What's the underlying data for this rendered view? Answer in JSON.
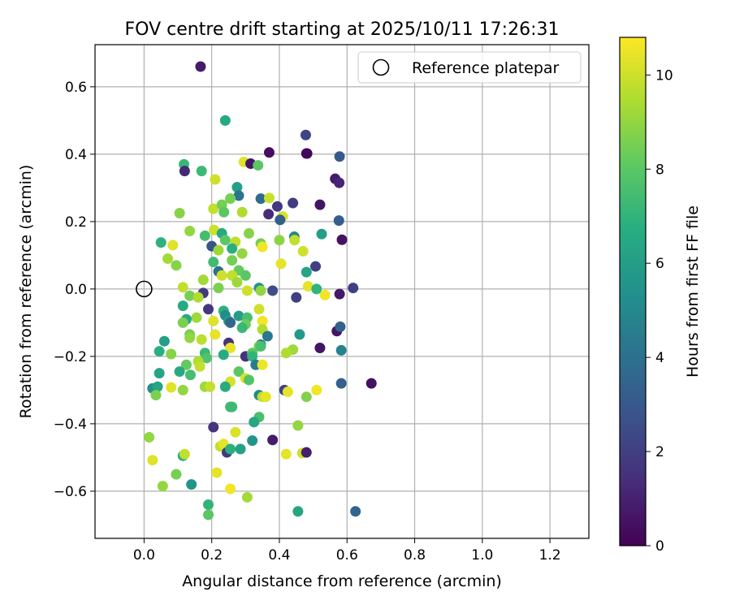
{
  "chart_data": {
    "type": "scatter",
    "title": "FOV centre drift starting at 2025/10/11 17:26:31",
    "xlabel": "Angular distance from reference (arcmin)",
    "ylabel": "Rotation from reference (arcmin)",
    "xlim": [
      -0.145,
      1.315
    ],
    "ylim": [
      -0.74,
      0.725
    ],
    "xticks": [
      0.0,
      0.2,
      0.4,
      0.6,
      0.8,
      1.0,
      1.2
    ],
    "xtick_labels": [
      "0.0",
      "0.2",
      "0.4",
      "0.6",
      "0.8",
      "1.0",
      "1.2"
    ],
    "yticks": [
      -0.6,
      -0.4,
      -0.2,
      0.0,
      0.2,
      0.4,
      0.6
    ],
    "ytick_labels": [
      "−0.6",
      "−0.4",
      "−0.2",
      "0.0",
      "0.2",
      "0.4",
      "0.6"
    ],
    "grid": true,
    "legend": {
      "position": "top-right",
      "label": "Reference platepar"
    },
    "reference_point": {
      "x": 0.0,
      "y": 0.0
    },
    "colorbar": {
      "label": "Hours from first FF file",
      "colormap": "viridis",
      "range": [
        0,
        10.8
      ],
      "ticks": [
        0,
        2,
        4,
        6,
        8,
        10
      ],
      "tick_labels": [
        "0",
        "2",
        "4",
        "6",
        "8",
        "10"
      ]
    },
    "points": [
      {
        "x": 0.167,
        "y": 0.66,
        "c": 0.8
      },
      {
        "x": 0.24,
        "y": 0.5,
        "c": 6.5
      },
      {
        "x": 0.37,
        "y": 0.405,
        "c": 0.4
      },
      {
        "x": 0.478,
        "y": 0.457,
        "c": 2.2
      },
      {
        "x": 0.48,
        "y": 0.402,
        "c": 0.2
      },
      {
        "x": 0.482,
        "y": 0.402,
        "c": 0.2
      },
      {
        "x": 0.578,
        "y": 0.393,
        "c": 3.0
      },
      {
        "x": 0.295,
        "y": 0.377,
        "c": 10.3
      },
      {
        "x": 0.315,
        "y": 0.372,
        "c": 0.6
      },
      {
        "x": 0.337,
        "y": 0.367,
        "c": 8.0
      },
      {
        "x": 0.118,
        "y": 0.37,
        "c": 7.2
      },
      {
        "x": 0.12,
        "y": 0.35,
        "c": 1.2
      },
      {
        "x": 0.17,
        "y": 0.35,
        "c": 7.3
      },
      {
        "x": 0.565,
        "y": 0.327,
        "c": 0.8
      },
      {
        "x": 0.577,
        "y": 0.315,
        "c": 1.1
      },
      {
        "x": 0.21,
        "y": 0.325,
        "c": 10.0
      },
      {
        "x": 0.275,
        "y": 0.302,
        "c": 6.1
      },
      {
        "x": 0.28,
        "y": 0.277,
        "c": 4.2
      },
      {
        "x": 0.255,
        "y": 0.268,
        "c": 8.5
      },
      {
        "x": 0.345,
        "y": 0.268,
        "c": 3.8
      },
      {
        "x": 0.37,
        "y": 0.27,
        "c": 9.9
      },
      {
        "x": 0.394,
        "y": 0.245,
        "c": 1.8
      },
      {
        "x": 0.44,
        "y": 0.255,
        "c": 1.9
      },
      {
        "x": 0.52,
        "y": 0.25,
        "c": 0.6
      },
      {
        "x": 0.205,
        "y": 0.238,
        "c": 9.8
      },
      {
        "x": 0.23,
        "y": 0.25,
        "c": 8.5
      },
      {
        "x": 0.105,
        "y": 0.225,
        "c": 8.8
      },
      {
        "x": 0.236,
        "y": 0.228,
        "c": 8.0
      },
      {
        "x": 0.29,
        "y": 0.228,
        "c": 9.5
      },
      {
        "x": 0.368,
        "y": 0.222,
        "c": 1.4
      },
      {
        "x": 0.41,
        "y": 0.215,
        "c": 10.2
      },
      {
        "x": 0.402,
        "y": 0.205,
        "c": 3.2
      },
      {
        "x": 0.576,
        "y": 0.203,
        "c": 3.2
      },
      {
        "x": 0.135,
        "y": 0.172,
        "c": 9.0
      },
      {
        "x": 0.207,
        "y": 0.175,
        "c": 10.0
      },
      {
        "x": 0.23,
        "y": 0.165,
        "c": 6.5
      },
      {
        "x": 0.18,
        "y": 0.158,
        "c": 7.5
      },
      {
        "x": 0.31,
        "y": 0.165,
        "c": 8.8
      },
      {
        "x": 0.444,
        "y": 0.155,
        "c": 5.0
      },
      {
        "x": 0.525,
        "y": 0.163,
        "c": 6.1
      },
      {
        "x": 0.585,
        "y": 0.146,
        "c": 0.5
      },
      {
        "x": 0.24,
        "y": 0.145,
        "c": 8.0
      },
      {
        "x": 0.27,
        "y": 0.14,
        "c": 9.8
      },
      {
        "x": 0.4,
        "y": 0.145,
        "c": 8.9
      },
      {
        "x": 0.445,
        "y": 0.145,
        "c": 9.8
      },
      {
        "x": 0.05,
        "y": 0.138,
        "c": 6.9
      },
      {
        "x": 0.085,
        "y": 0.13,
        "c": 10.3
      },
      {
        "x": 0.2,
        "y": 0.127,
        "c": 2.8
      },
      {
        "x": 0.345,
        "y": 0.135,
        "c": 8.5
      },
      {
        "x": 0.35,
        "y": 0.125,
        "c": 10.6
      },
      {
        "x": 0.26,
        "y": 0.12,
        "c": 6.8
      },
      {
        "x": 0.22,
        "y": 0.115,
        "c": 9.2
      },
      {
        "x": 0.29,
        "y": 0.105,
        "c": 9.0
      },
      {
        "x": 0.47,
        "y": 0.112,
        "c": 10.0
      },
      {
        "x": 0.07,
        "y": 0.09,
        "c": 9.3
      },
      {
        "x": 0.26,
        "y": 0.085,
        "c": 8.5
      },
      {
        "x": 0.205,
        "y": 0.08,
        "c": 7.4
      },
      {
        "x": 0.095,
        "y": 0.07,
        "c": 8.8
      },
      {
        "x": 0.22,
        "y": 0.052,
        "c": 4.0
      },
      {
        "x": 0.28,
        "y": 0.055,
        "c": 8.2
      },
      {
        "x": 0.48,
        "y": 0.05,
        "c": 6.3
      },
      {
        "x": 0.23,
        "y": 0.04,
        "c": 10.0
      },
      {
        "x": 0.26,
        "y": 0.04,
        "c": 9.8
      },
      {
        "x": 0.3,
        "y": 0.04,
        "c": 8.0
      },
      {
        "x": 0.175,
        "y": 0.027,
        "c": 9.3
      },
      {
        "x": 0.275,
        "y": 0.02,
        "c": 9.2
      },
      {
        "x": 0.405,
        "y": 0.075,
        "c": 10.4
      },
      {
        "x": 0.507,
        "y": 0.067,
        "c": 2.0
      },
      {
        "x": 0.115,
        "y": 0.005,
        "c": 9.8
      },
      {
        "x": 0.22,
        "y": 0.003,
        "c": 8.6
      },
      {
        "x": 0.305,
        "y": -0.005,
        "c": 10.0
      },
      {
        "x": 0.34,
        "y": 0.003,
        "c": 5.6
      },
      {
        "x": 0.345,
        "y": -0.005,
        "c": 9.0
      },
      {
        "x": 0.38,
        "y": -0.005,
        "c": 2.5
      },
      {
        "x": 0.485,
        "y": 0.008,
        "c": 10.4
      },
      {
        "x": 0.51,
        "y": 0.0,
        "c": 7.0
      },
      {
        "x": 0.535,
        "y": -0.018,
        "c": 10.6
      },
      {
        "x": 0.578,
        "y": -0.015,
        "c": 0.7
      },
      {
        "x": 0.618,
        "y": 0.003,
        "c": 2.0
      },
      {
        "x": 0.175,
        "y": -0.012,
        "c": 1.8
      },
      {
        "x": 0.135,
        "y": -0.02,
        "c": 8.5
      },
      {
        "x": 0.16,
        "y": -0.025,
        "c": 9.5
      },
      {
        "x": 0.45,
        "y": -0.025,
        "c": 2.0
      },
      {
        "x": 0.115,
        "y": -0.05,
        "c": 6.5
      },
      {
        "x": 0.19,
        "y": -0.06,
        "c": 1.7
      },
      {
        "x": 0.235,
        "y": -0.065,
        "c": 6.9
      },
      {
        "x": 0.24,
        "y": -0.078,
        "c": 5.2
      },
      {
        "x": 0.28,
        "y": -0.08,
        "c": 6.0
      },
      {
        "x": 0.305,
        "y": -0.085,
        "c": 7.6
      },
      {
        "x": 0.34,
        "y": -0.06,
        "c": 10.0
      },
      {
        "x": 0.155,
        "y": -0.085,
        "c": 9.2
      },
      {
        "x": 0.125,
        "y": -0.09,
        "c": 6.5
      },
      {
        "x": 0.115,
        "y": -0.1,
        "c": 8.6
      },
      {
        "x": 0.205,
        "y": -0.095,
        "c": 10.3
      },
      {
        "x": 0.25,
        "y": -0.095,
        "c": 6.0
      },
      {
        "x": 0.255,
        "y": -0.1,
        "c": 3.6
      },
      {
        "x": 0.35,
        "y": -0.095,
        "c": 10.6
      },
      {
        "x": 0.3,
        "y": -0.105,
        "c": 8.3
      },
      {
        "x": 0.29,
        "y": -0.115,
        "c": 7.2
      },
      {
        "x": 0.35,
        "y": -0.12,
        "c": 9.5
      },
      {
        "x": 0.57,
        "y": -0.125,
        "c": 0.6
      },
      {
        "x": 0.58,
        "y": -0.112,
        "c": 3.3
      },
      {
        "x": 0.135,
        "y": -0.135,
        "c": 8.5
      },
      {
        "x": 0.21,
        "y": -0.135,
        "c": 10.4
      },
      {
        "x": 0.365,
        "y": -0.14,
        "c": 4.3
      },
      {
        "x": 0.46,
        "y": -0.135,
        "c": 5.8
      },
      {
        "x": 0.06,
        "y": -0.155,
        "c": 6.0
      },
      {
        "x": 0.25,
        "y": -0.16,
        "c": 1.5
      },
      {
        "x": 0.135,
        "y": -0.145,
        "c": 9.0
      },
      {
        "x": 0.17,
        "y": -0.15,
        "c": 9.7
      },
      {
        "x": 0.345,
        "y": -0.165,
        "c": 4.8
      },
      {
        "x": 0.34,
        "y": -0.17,
        "c": 8.5
      },
      {
        "x": 0.345,
        "y": -0.17,
        "c": 7.6
      },
      {
        "x": 0.255,
        "y": -0.175,
        "c": 10.4
      },
      {
        "x": 0.44,
        "y": -0.18,
        "c": 9.2
      },
      {
        "x": 0.52,
        "y": -0.175,
        "c": 0.6
      },
      {
        "x": 0.583,
        "y": -0.182,
        "c": 4.8
      },
      {
        "x": 0.045,
        "y": -0.185,
        "c": 6.8
      },
      {
        "x": 0.08,
        "y": -0.193,
        "c": 8.8
      },
      {
        "x": 0.18,
        "y": -0.19,
        "c": 7.2
      },
      {
        "x": 0.235,
        "y": -0.195,
        "c": 6.6
      },
      {
        "x": 0.3,
        "y": -0.2,
        "c": 1.5
      },
      {
        "x": 0.32,
        "y": -0.19,
        "c": 8.0
      },
      {
        "x": 0.42,
        "y": -0.19,
        "c": 9.5
      },
      {
        "x": 0.185,
        "y": -0.205,
        "c": 7.8
      },
      {
        "x": 0.32,
        "y": -0.2,
        "c": 7.0
      },
      {
        "x": 0.16,
        "y": -0.215,
        "c": 9.5
      },
      {
        "x": 0.125,
        "y": -0.225,
        "c": 8.2
      },
      {
        "x": 0.165,
        "y": -0.23,
        "c": 9.8
      },
      {
        "x": 0.33,
        "y": -0.225,
        "c": 4.5
      },
      {
        "x": 0.35,
        "y": -0.225,
        "c": 10.5
      },
      {
        "x": 0.105,
        "y": -0.245,
        "c": 6.5
      },
      {
        "x": 0.045,
        "y": -0.25,
        "c": 6.3
      },
      {
        "x": 0.137,
        "y": -0.255,
        "c": 7.5
      },
      {
        "x": 0.28,
        "y": -0.245,
        "c": 8.0
      },
      {
        "x": 0.3,
        "y": -0.265,
        "c": 10.2
      },
      {
        "x": 0.31,
        "y": -0.27,
        "c": 7.8
      },
      {
        "x": 0.255,
        "y": -0.275,
        "c": 10.2
      },
      {
        "x": 0.583,
        "y": -0.28,
        "c": 3.3
      },
      {
        "x": 0.672,
        "y": -0.28,
        "c": 0.5
      },
      {
        "x": 0.025,
        "y": -0.295,
        "c": 5.3
      },
      {
        "x": 0.04,
        "y": -0.29,
        "c": 6.3
      },
      {
        "x": 0.08,
        "y": -0.292,
        "c": 10.3
      },
      {
        "x": 0.115,
        "y": -0.3,
        "c": 9.0
      },
      {
        "x": 0.18,
        "y": -0.29,
        "c": 9.2
      },
      {
        "x": 0.195,
        "y": -0.29,
        "c": 9.8
      },
      {
        "x": 0.24,
        "y": -0.29,
        "c": 6.6
      },
      {
        "x": 0.415,
        "y": -0.3,
        "c": 2.0
      },
      {
        "x": 0.425,
        "y": -0.305,
        "c": 10.4
      },
      {
        "x": 0.035,
        "y": -0.315,
        "c": 8.6
      },
      {
        "x": 0.34,
        "y": -0.315,
        "c": 5.0
      },
      {
        "x": 0.35,
        "y": -0.32,
        "c": 9.8
      },
      {
        "x": 0.36,
        "y": -0.32,
        "c": 10.4
      },
      {
        "x": 0.48,
        "y": -0.32,
        "c": 8.7
      },
      {
        "x": 0.51,
        "y": -0.3,
        "c": 10.6
      },
      {
        "x": 0.255,
        "y": -0.35,
        "c": 7.5
      },
      {
        "x": 0.26,
        "y": -0.35,
        "c": 7.3
      },
      {
        "x": 0.34,
        "y": -0.38,
        "c": 7.6
      },
      {
        "x": 0.325,
        "y": -0.395,
        "c": 6.4
      },
      {
        "x": 0.455,
        "y": -0.405,
        "c": 9.0
      },
      {
        "x": 0.205,
        "y": -0.41,
        "c": 1.6
      },
      {
        "x": 0.27,
        "y": -0.425,
        "c": 10.2
      },
      {
        "x": 0.015,
        "y": -0.44,
        "c": 9.0
      },
      {
        "x": 0.38,
        "y": -0.448,
        "c": 0.8
      },
      {
        "x": 0.32,
        "y": -0.45,
        "c": 5.6
      },
      {
        "x": 0.225,
        "y": -0.467,
        "c": 9.8
      },
      {
        "x": 0.235,
        "y": -0.46,
        "c": 10.4
      },
      {
        "x": 0.245,
        "y": -0.485,
        "c": 1.8
      },
      {
        "x": 0.255,
        "y": -0.475,
        "c": 6.8
      },
      {
        "x": 0.285,
        "y": -0.475,
        "c": 6.2
      },
      {
        "x": 0.115,
        "y": -0.495,
        "c": 6.8
      },
      {
        "x": 0.12,
        "y": -0.49,
        "c": 9.8
      },
      {
        "x": 0.42,
        "y": -0.49,
        "c": 10.4
      },
      {
        "x": 0.468,
        "y": -0.487,
        "c": 10.0
      },
      {
        "x": 0.48,
        "y": -0.485,
        "c": 0.9
      },
      {
        "x": 0.025,
        "y": -0.508,
        "c": 10.3
      },
      {
        "x": 0.215,
        "y": -0.545,
        "c": 10.4
      },
      {
        "x": 0.095,
        "y": -0.55,
        "c": 8.5
      },
      {
        "x": 0.055,
        "y": -0.585,
        "c": 9.0
      },
      {
        "x": 0.14,
        "y": -0.58,
        "c": 5.6
      },
      {
        "x": 0.255,
        "y": -0.593,
        "c": 10.6
      },
      {
        "x": 0.305,
        "y": -0.618,
        "c": 9.3
      },
      {
        "x": 0.19,
        "y": -0.64,
        "c": 7.0
      },
      {
        "x": 0.19,
        "y": -0.67,
        "c": 8.0
      },
      {
        "x": 0.455,
        "y": -0.66,
        "c": 6.3
      },
      {
        "x": 0.625,
        "y": -0.66,
        "c": 3.5
      }
    ]
  }
}
